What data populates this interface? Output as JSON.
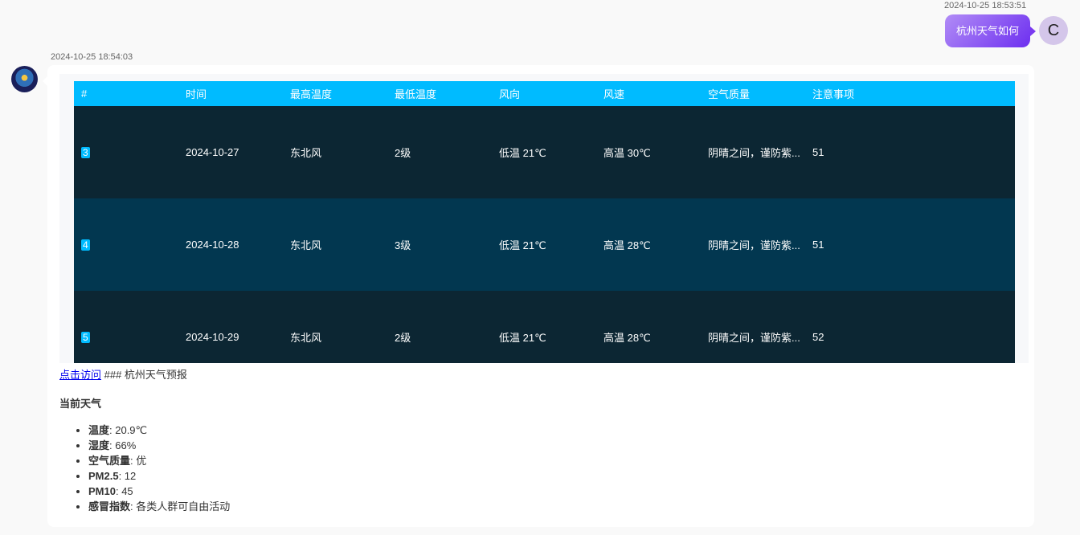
{
  "user_message": {
    "timestamp": "2024-10-25 18:53:51",
    "text": "杭州天气如何",
    "avatar_letter": "C"
  },
  "bot_message": {
    "timestamp": "2024-10-25 18:54:03",
    "table": {
      "headers": [
        "#",
        "时间",
        "最高温度",
        "最低温度",
        "风向",
        "风速",
        "空气质量",
        "注意事项"
      ],
      "rows": [
        [
          "3",
          "2024-10-27",
          "东北风",
          "2级",
          "低温 21℃",
          "高温 30℃",
          "阴晴之间，谨防紫...",
          "51"
        ],
        [
          "4",
          "2024-10-28",
          "东北风",
          "3级",
          "低温 21℃",
          "高温 28℃",
          "阴晴之间，谨防紫...",
          "51"
        ],
        [
          "5",
          "2024-10-29",
          "东北风",
          "2级",
          "低温 21℃",
          "高温 28℃",
          "阴晴之间，谨防紫...",
          "52"
        ]
      ]
    },
    "link_text": "点击访问",
    "after_link": " ### 杭州天气预报",
    "section_title": "当前天气",
    "items": [
      {
        "label": "温度",
        "value": ": 20.9℃"
      },
      {
        "label": "湿度",
        "value": ": 66%"
      },
      {
        "label": "空气质量",
        "value": ": 优"
      },
      {
        "label": "PM2.5",
        "value": ": 12"
      },
      {
        "label": "PM10",
        "value": ": 45"
      },
      {
        "label": "感冒指数",
        "value": ": 各类人群可自由活动"
      }
    ]
  },
  "colors": {
    "header": "#00bbff",
    "row_dark": "#0c2633",
    "row_alt": "#023750",
    "user_bubble": "#8a55f2"
  }
}
